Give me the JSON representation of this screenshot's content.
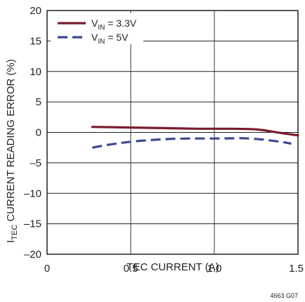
{
  "chart_data": {
    "type": "line",
    "xlabel": "TEC CURRENT (A)",
    "ylabel": {
      "main": "I",
      "sub": "TEC",
      "rest": " CURRENT READING ERROR (%)"
    },
    "xlim": [
      0,
      1.5
    ],
    "ylim": [
      -20,
      20
    ],
    "xticks": [
      0,
      0.5,
      1.0,
      1.5
    ],
    "xtick_labels": [
      "0",
      "0.5",
      "1.0",
      "1.5"
    ],
    "yticks": [
      -20,
      -15,
      -10,
      -5,
      0,
      5,
      10,
      15,
      20
    ],
    "ytick_labels": [
      "–20",
      "–15",
      "–10",
      "–5",
      "0",
      "5",
      "10",
      "15",
      "20"
    ],
    "grid": true,
    "legend_position": "top-left",
    "series": [
      {
        "name": {
          "main": "V",
          "sub": "IN",
          "rest": " = 3.3V"
        },
        "color": "#7a1a2e",
        "style": "solid",
        "x": [
          0.27,
          0.4,
          0.5,
          0.6,
          0.7,
          0.8,
          0.9,
          1.0,
          1.1,
          1.2,
          1.25,
          1.3,
          1.35,
          1.4,
          1.45,
          1.5
        ],
        "y": [
          0.9,
          0.85,
          0.8,
          0.75,
          0.7,
          0.65,
          0.6,
          0.6,
          0.6,
          0.55,
          0.5,
          0.35,
          0.1,
          -0.1,
          -0.3,
          -0.5
        ]
      },
      {
        "name": {
          "main": "V",
          "sub": "IN",
          "rest": " = 5V"
        },
        "color": "#3a4a8f",
        "style": "dashed",
        "x": [
          0.27,
          0.35,
          0.45,
          0.55,
          0.65,
          0.75,
          0.85,
          0.95,
          1.05,
          1.15,
          1.22,
          1.3,
          1.37,
          1.42,
          1.46
        ],
        "y": [
          -2.5,
          -2.1,
          -1.7,
          -1.4,
          -1.2,
          -1.05,
          -1.0,
          -1.0,
          -1.0,
          -0.95,
          -1.0,
          -1.2,
          -1.45,
          -1.65,
          -1.85
        ]
      }
    ],
    "annotation": "4663 G07"
  }
}
